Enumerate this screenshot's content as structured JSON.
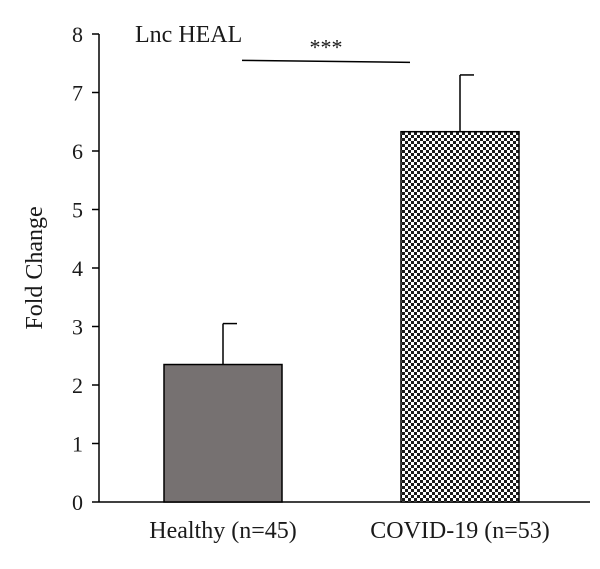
{
  "chart_data": {
    "type": "bar",
    "title": "Lnc HEAL",
    "xlabel": "",
    "ylabel": "Fold Change",
    "ylim": [
      0,
      8
    ],
    "yticks": [
      0,
      1,
      2,
      3,
      4,
      5,
      6,
      7,
      8
    ],
    "categories": [
      "Healthy (n=45)",
      "COVID-19 (n=53)"
    ],
    "values": [
      2.35,
      6.33
    ],
    "errors": [
      0.7,
      0.97
    ],
    "bar_fills": [
      "#767171",
      "checkered"
    ],
    "bar_colors": {
      "solid": "#767171",
      "outline": "#000000",
      "pattern_light": "#ffffff",
      "pattern_dark": "#1a1a1a"
    },
    "significance": {
      "label": "***",
      "from_category": 0,
      "to_category": 1,
      "y": 7.55
    },
    "grid": false,
    "legend": "none"
  }
}
